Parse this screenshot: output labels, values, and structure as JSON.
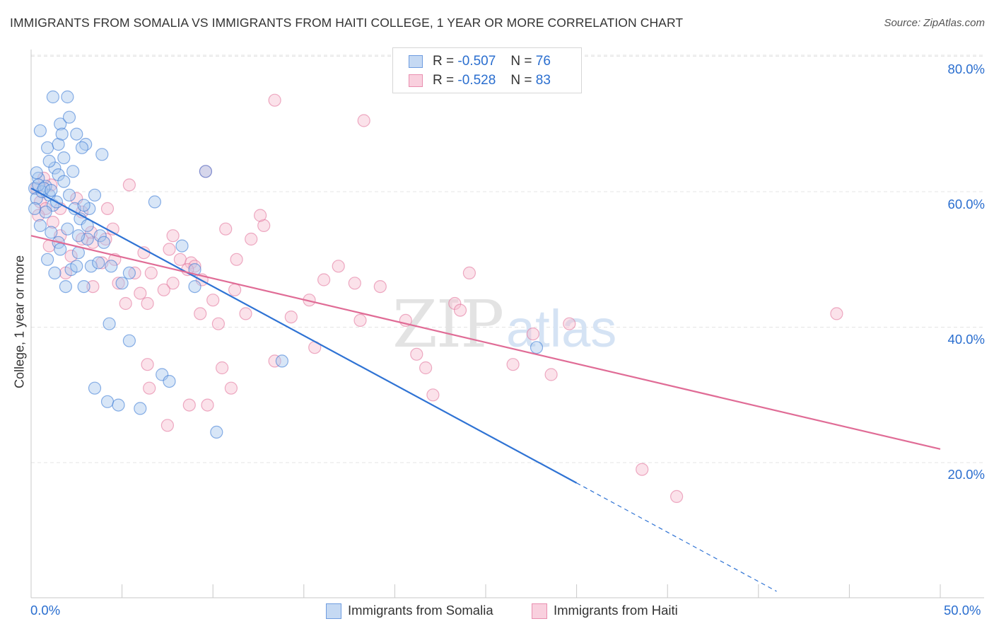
{
  "header": {
    "title": "IMMIGRANTS FROM SOMALIA VS IMMIGRANTS FROM HAITI COLLEGE, 1 YEAR OR MORE CORRELATION CHART",
    "source": "Source: ZipAtlas.com"
  },
  "watermark": {
    "zip": "ZIP",
    "atlas": "atlas"
  },
  "legend": {
    "somalia": {
      "r_label": "R =",
      "r_value": "-0.507",
      "n_label": "N =",
      "n_value": "76"
    },
    "haiti": {
      "r_label": "R =",
      "r_value": "-0.528",
      "n_label": "N =",
      "n_value": "83"
    }
  },
  "chart_data": {
    "type": "scatter",
    "title": "IMMIGRANTS FROM SOMALIA VS IMMIGRANTS FROM HAITI COLLEGE, 1 YEAR OR MORE CORRELATION CHART",
    "xlabel": "",
    "ylabel": "College, 1 year or more",
    "xlim": [
      0,
      50
    ],
    "ylim": [
      0,
      82
    ],
    "x_tick_labels": [
      "0.0%",
      "50.0%"
    ],
    "y_ticks": [
      20,
      40,
      60,
      80
    ],
    "y_tick_labels": [
      "20.0%",
      "40.0%",
      "60.0%",
      "80.0%"
    ],
    "grid": true,
    "legend_position": "top-center",
    "series": [
      {
        "name": "Immigrants from Somalia",
        "color": "#2f73d4",
        "fill": "#a9c7ee",
        "r": -0.507,
        "n": 76,
        "trend": {
          "x0": 0.0,
          "y0": 60.5,
          "x1": 30.0,
          "y1": 17.0,
          "dashed_to_x": 41.0,
          "dashed_to_y": 1.0
        },
        "points": [
          [
            0.2,
            60.5
          ],
          [
            0.4,
            62.0
          ],
          [
            0.8,
            60.8
          ],
          [
            0.3,
            59.0
          ],
          [
            1.0,
            59.5
          ],
          [
            0.5,
            69.0
          ],
          [
            1.2,
            74.0
          ],
          [
            2.0,
            74.0
          ],
          [
            0.9,
            66.5
          ],
          [
            1.6,
            70.0
          ],
          [
            2.1,
            71.0
          ],
          [
            1.5,
            67.0
          ],
          [
            1.3,
            63.5
          ],
          [
            1.7,
            68.5
          ],
          [
            2.5,
            68.5
          ],
          [
            3.0,
            67.0
          ],
          [
            2.8,
            66.5
          ],
          [
            1.0,
            64.5
          ],
          [
            1.5,
            62.5
          ],
          [
            2.3,
            63.0
          ],
          [
            1.8,
            61.5
          ],
          [
            0.6,
            60.0
          ],
          [
            1.2,
            58.0
          ],
          [
            0.8,
            57.0
          ],
          [
            2.1,
            59.5
          ],
          [
            3.5,
            59.5
          ],
          [
            3.2,
            57.5
          ],
          [
            2.7,
            56.0
          ],
          [
            3.8,
            53.5
          ],
          [
            2.0,
            54.5
          ],
          [
            1.1,
            54.0
          ],
          [
            1.5,
            52.5
          ],
          [
            0.9,
            50.0
          ],
          [
            1.3,
            48.0
          ],
          [
            2.6,
            51.0
          ],
          [
            3.1,
            53.0
          ],
          [
            3.3,
            49.0
          ],
          [
            3.7,
            49.5
          ],
          [
            4.4,
            49.0
          ],
          [
            2.9,
            46.0
          ],
          [
            1.9,
            46.0
          ],
          [
            5.0,
            46.5
          ],
          [
            5.4,
            48.0
          ],
          [
            4.3,
            40.5
          ],
          [
            5.4,
            38.0
          ],
          [
            3.5,
            31.0
          ],
          [
            4.2,
            29.0
          ],
          [
            4.8,
            28.5
          ],
          [
            6.0,
            28.0
          ],
          [
            7.2,
            33.0
          ],
          [
            7.6,
            32.0
          ],
          [
            6.8,
            58.5
          ],
          [
            8.3,
            52.0
          ],
          [
            9.0,
            48.5
          ],
          [
            9.6,
            63.0
          ],
          [
            10.2,
            24.5
          ],
          [
            13.8,
            35.0
          ],
          [
            27.8,
            37.0
          ],
          [
            0.4,
            61.0
          ],
          [
            0.7,
            60.5
          ],
          [
            1.4,
            58.5
          ],
          [
            2.4,
            57.5
          ],
          [
            2.2,
            48.5
          ],
          [
            2.6,
            53.5
          ],
          [
            1.6,
            51.5
          ],
          [
            3.1,
            55.0
          ],
          [
            0.5,
            55.0
          ],
          [
            0.2,
            57.5
          ],
          [
            9.0,
            46.0
          ],
          [
            3.9,
            65.5
          ],
          [
            1.8,
            65.0
          ],
          [
            2.5,
            49.0
          ],
          [
            4.0,
            52.5
          ],
          [
            0.3,
            62.8
          ],
          [
            1.1,
            60.2
          ],
          [
            2.9,
            58.0
          ]
        ]
      },
      {
        "name": "Immigrants from Haiti",
        "color": "#e06c96",
        "fill": "#f6bfd1",
        "r": -0.528,
        "n": 83,
        "trend": {
          "x0": 0.0,
          "y0": 53.5,
          "x1": 50.0,
          "y1": 22.0
        },
        "points": [
          [
            0.3,
            60.5
          ],
          [
            0.5,
            58.5
          ],
          [
            0.8,
            57.5
          ],
          [
            1.2,
            55.5
          ],
          [
            0.4,
            56.5
          ],
          [
            1.6,
            53.5
          ],
          [
            1.0,
            52.0
          ],
          [
            2.8,
            53.0
          ],
          [
            2.2,
            50.5
          ],
          [
            1.9,
            48.0
          ],
          [
            3.4,
            52.5
          ],
          [
            2.8,
            57.0
          ],
          [
            3.3,
            54.0
          ],
          [
            4.1,
            53.0
          ],
          [
            4.2,
            57.5
          ],
          [
            5.4,
            61.0
          ],
          [
            4.6,
            50.0
          ],
          [
            5.7,
            48.0
          ],
          [
            6.2,
            51.0
          ],
          [
            7.6,
            51.5
          ],
          [
            7.8,
            53.5
          ],
          [
            8.2,
            50.0
          ],
          [
            8.8,
            49.5
          ],
          [
            9.0,
            49.0
          ],
          [
            6.0,
            45.0
          ],
          [
            6.4,
            43.5
          ],
          [
            5.2,
            43.5
          ],
          [
            4.8,
            46.5
          ],
          [
            3.4,
            46.0
          ],
          [
            4.5,
            54.5
          ],
          [
            6.6,
            48.0
          ],
          [
            7.8,
            46.5
          ],
          [
            8.6,
            48.5
          ],
          [
            9.4,
            47.0
          ],
          [
            10.0,
            44.0
          ],
          [
            10.3,
            40.5
          ],
          [
            11.2,
            45.5
          ],
          [
            11.8,
            42.0
          ],
          [
            12.8,
            55.0
          ],
          [
            12.1,
            53.0
          ],
          [
            11.3,
            50.0
          ],
          [
            12.6,
            56.5
          ],
          [
            9.6,
            63.0
          ],
          [
            13.4,
            73.5
          ],
          [
            18.3,
            70.5
          ],
          [
            15.3,
            44.0
          ],
          [
            16.1,
            47.0
          ],
          [
            16.9,
            49.0
          ],
          [
            17.8,
            46.5
          ],
          [
            18.1,
            41.0
          ],
          [
            19.2,
            46.0
          ],
          [
            20.6,
            41.0
          ],
          [
            21.2,
            36.0
          ],
          [
            21.7,
            34.0
          ],
          [
            22.1,
            30.0
          ],
          [
            23.3,
            43.5
          ],
          [
            23.6,
            42.5
          ],
          [
            24.1,
            48.0
          ],
          [
            29.6,
            40.5
          ],
          [
            27.6,
            39.0
          ],
          [
            26.5,
            34.5
          ],
          [
            28.6,
            33.0
          ],
          [
            33.6,
            19.0
          ],
          [
            35.5,
            15.0
          ],
          [
            44.3,
            42.0
          ],
          [
            8.7,
            28.5
          ],
          [
            10.5,
            34.0
          ],
          [
            11.0,
            31.0
          ],
          [
            7.5,
            25.5
          ],
          [
            6.5,
            31.0
          ],
          [
            6.4,
            34.5
          ],
          [
            9.7,
            28.5
          ],
          [
            13.4,
            35.0
          ],
          [
            14.3,
            41.5
          ],
          [
            15.6,
            37.0
          ],
          [
            10.7,
            54.5
          ],
          [
            9.3,
            42.0
          ],
          [
            7.3,
            45.5
          ],
          [
            3.9,
            49.5
          ],
          [
            1.6,
            57.5
          ],
          [
            2.5,
            59.0
          ],
          [
            1.1,
            61.0
          ],
          [
            0.7,
            62.0
          ]
        ]
      }
    ]
  },
  "axes": {
    "ylabel": "College, 1 year or more",
    "x_min_label": "0.0%",
    "x_max_label": "50.0%",
    "y_labels": {
      "y80": "80.0%",
      "y60": "60.0%",
      "y40": "40.0%",
      "y20": "20.0%"
    }
  },
  "bottom_legend": {
    "somalia": "Immigrants from Somalia",
    "haiti": "Immigrants from Haiti"
  }
}
